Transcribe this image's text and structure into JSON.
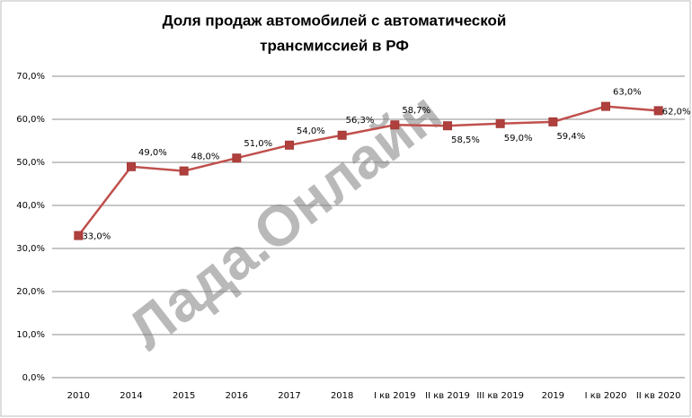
{
  "chart_data": {
    "type": "line",
    "title": [
      "Доля продаж автомобилей с автоматической",
      "трансмиссией  в РФ"
    ],
    "watermark": "Лада.Онлайн",
    "categories": [
      "2010",
      "2014",
      "2015",
      "2016",
      "2017",
      "2018",
      "I кв 2019",
      "II кв 2019",
      "III кв 2019",
      "2019",
      "I кв 2020",
      "II кв 2020"
    ],
    "series": [
      {
        "name": "Доля продаж",
        "color": "#c0504d",
        "values": [
          33.0,
          49.0,
          48.0,
          51.0,
          54.0,
          56.3,
          58.7,
          58.5,
          59.0,
          59.4,
          63.0,
          62.0
        ],
        "value_labels": [
          "33,0%",
          "49,0%",
          "48,0%",
          "51,0%",
          "54,0%",
          "56,3%",
          "58,7%",
          "58,5%",
          "59,0%",
          "59,4%",
          "63,0%",
          "62,0%"
        ]
      }
    ],
    "ylim": [
      0,
      70
    ],
    "yticks": [
      {
        "value": 0,
        "label": "0,0%"
      },
      {
        "value": 10,
        "label": "10,0%"
      },
      {
        "value": 20,
        "label": "20,0%"
      },
      {
        "value": 30,
        "label": "30,0%"
      },
      {
        "value": 40,
        "label": "40,0%"
      },
      {
        "value": 50,
        "label": "50,0%"
      },
      {
        "value": 60,
        "label": "60,0%"
      },
      {
        "value": 70,
        "label": "70,0%"
      }
    ],
    "grid": true
  }
}
